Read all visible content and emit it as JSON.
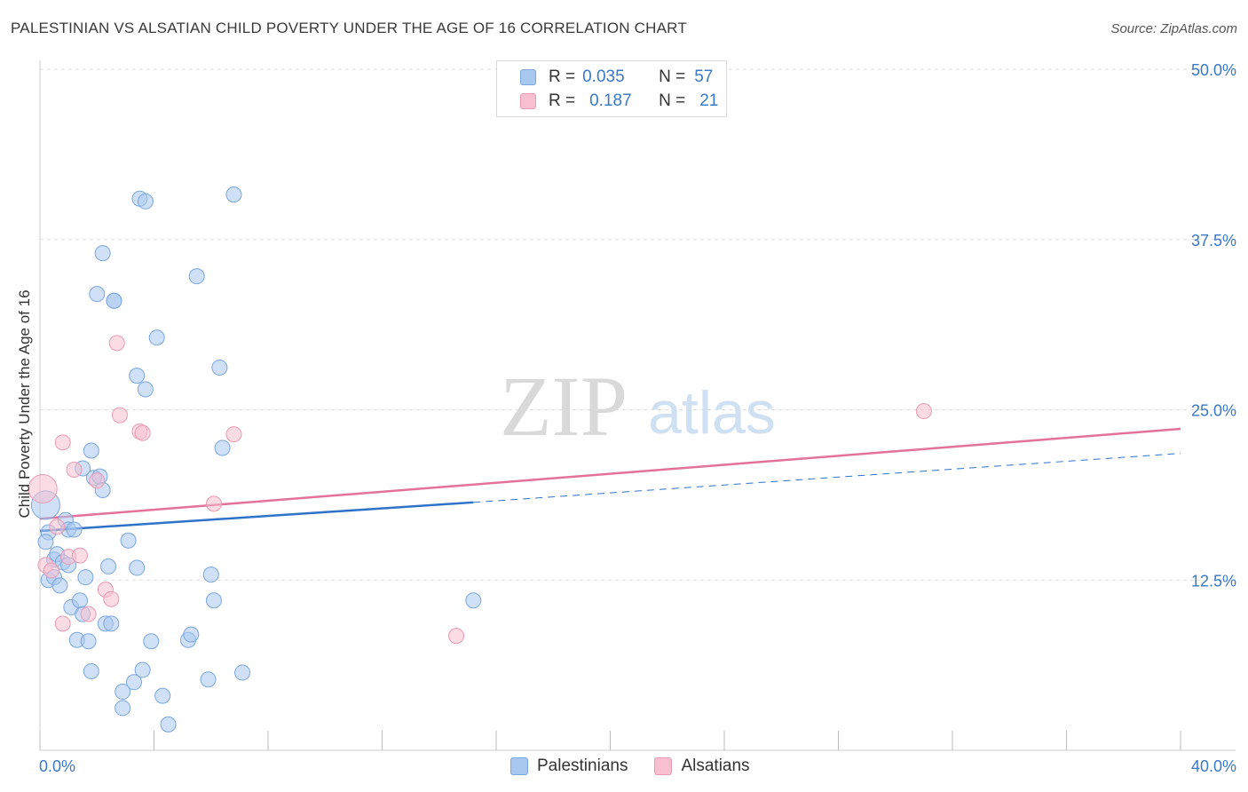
{
  "title": "PALESTINIAN VS ALSATIAN CHILD POVERTY UNDER THE AGE OF 16 CORRELATION CHART",
  "source": "Source: ZipAtlas.com",
  "watermark": {
    "zip": "ZIP",
    "atlas": "atlas"
  },
  "legend": {
    "palestinians": {
      "r_label": "R =",
      "r_value": "0.035",
      "n_label": "N =",
      "n_value": "57"
    },
    "alsatians": {
      "r_label": "R =",
      "r_value": "0.187",
      "n_label": "N =",
      "n_value": "21"
    }
  },
  "bottom_legend": {
    "palestinians": "Palestinians",
    "alsatians": "Alsatians"
  },
  "colors": {
    "blue_fill": "#a9c8f0",
    "blue_stroke": "#7aa7df",
    "blue_line": "#2f72c9",
    "pink_fill": "#f7bfd0",
    "pink_stroke": "#eb9ab3",
    "pink_line": "#e2729a",
    "axis_text": "#3a78c8",
    "grid": "#dddddd"
  },
  "chart_data": {
    "type": "scatter",
    "title": "PALESTINIAN VS ALSATIAN CHILD POVERTY UNDER THE AGE OF 16 CORRELATION CHART",
    "xlabel": "",
    "ylabel": "Child Poverty Under the Age of 16",
    "xlim": [
      0,
      40
    ],
    "ylim": [
      0,
      50
    ],
    "x_tick_labels": [
      "0.0%",
      "40.0%"
    ],
    "y_ticks": [
      12.5,
      25.0,
      37.5,
      50.0
    ],
    "y_tick_labels": [
      "12.5%",
      "25.0%",
      "37.5%",
      "50.0%"
    ],
    "grid": true,
    "series": [
      {
        "name": "Palestinians",
        "points": [
          [
            0.2,
            18.0
          ],
          [
            0.3,
            16.0
          ],
          [
            0.3,
            12.5
          ],
          [
            0.5,
            12.7
          ],
          [
            0.5,
            14.0
          ],
          [
            0.6,
            14.4
          ],
          [
            0.7,
            12.1
          ],
          [
            0.8,
            13.8
          ],
          [
            0.9,
            16.9
          ],
          [
            1.0,
            16.2
          ],
          [
            1.0,
            13.6
          ],
          [
            1.1,
            10.5
          ],
          [
            1.2,
            16.2
          ],
          [
            1.3,
            8.1
          ],
          [
            1.4,
            11.0
          ],
          [
            1.5,
            10.0
          ],
          [
            1.5,
            20.7
          ],
          [
            1.6,
            12.7
          ],
          [
            1.7,
            8.0
          ],
          [
            1.8,
            5.8
          ],
          [
            1.8,
            22.0
          ],
          [
            1.9,
            20.0
          ],
          [
            2.1,
            20.1
          ],
          [
            2.2,
            19.1
          ],
          [
            2.3,
            9.3
          ],
          [
            2.4,
            13.5
          ],
          [
            2.5,
            9.3
          ],
          [
            2.0,
            33.5
          ],
          [
            2.2,
            36.5
          ],
          [
            2.6,
            33.0
          ],
          [
            2.6,
            33.0
          ],
          [
            2.9,
            4.3
          ],
          [
            2.9,
            3.1
          ],
          [
            3.1,
            15.4
          ],
          [
            3.3,
            5.0
          ],
          [
            3.4,
            13.4
          ],
          [
            3.4,
            27.5
          ],
          [
            3.5,
            40.5
          ],
          [
            3.6,
            5.9
          ],
          [
            3.7,
            40.3
          ],
          [
            3.7,
            26.5
          ],
          [
            3.9,
            8.0
          ],
          [
            4.1,
            30.3
          ],
          [
            4.3,
            4.0
          ],
          [
            4.5,
            1.9
          ],
          [
            5.2,
            8.1
          ],
          [
            5.3,
            8.5
          ],
          [
            5.5,
            34.8
          ],
          [
            5.9,
            5.2
          ],
          [
            6.0,
            12.9
          ],
          [
            6.1,
            11.0
          ],
          [
            6.3,
            28.1
          ],
          [
            6.4,
            22.2
          ],
          [
            6.8,
            40.8
          ],
          [
            7.1,
            5.7
          ],
          [
            15.2,
            11.0
          ],
          [
            0.2,
            15.3
          ]
        ],
        "trend": {
          "x": [
            0,
            15.2,
            40
          ],
          "y": [
            16.1,
            18.2,
            21.8
          ],
          "solid_until": 15.2
        }
      },
      {
        "name": "Alsatians",
        "points": [
          [
            0.1,
            19.2
          ],
          [
            0.2,
            13.6
          ],
          [
            0.4,
            13.2
          ],
          [
            0.6,
            16.4
          ],
          [
            0.8,
            9.3
          ],
          [
            0.8,
            22.6
          ],
          [
            1.0,
            14.2
          ],
          [
            1.2,
            20.6
          ],
          [
            1.4,
            14.3
          ],
          [
            1.7,
            10.0
          ],
          [
            2.0,
            19.8
          ],
          [
            2.3,
            11.8
          ],
          [
            2.5,
            11.1
          ],
          [
            2.7,
            29.9
          ],
          [
            2.8,
            24.6
          ],
          [
            3.5,
            23.4
          ],
          [
            3.6,
            23.3
          ],
          [
            6.1,
            18.1
          ],
          [
            6.8,
            23.2
          ],
          [
            14.6,
            8.4
          ],
          [
            31.0,
            24.9
          ]
        ],
        "trend": {
          "x": [
            0,
            40
          ],
          "y": [
            17.0,
            23.6
          ]
        }
      }
    ]
  }
}
